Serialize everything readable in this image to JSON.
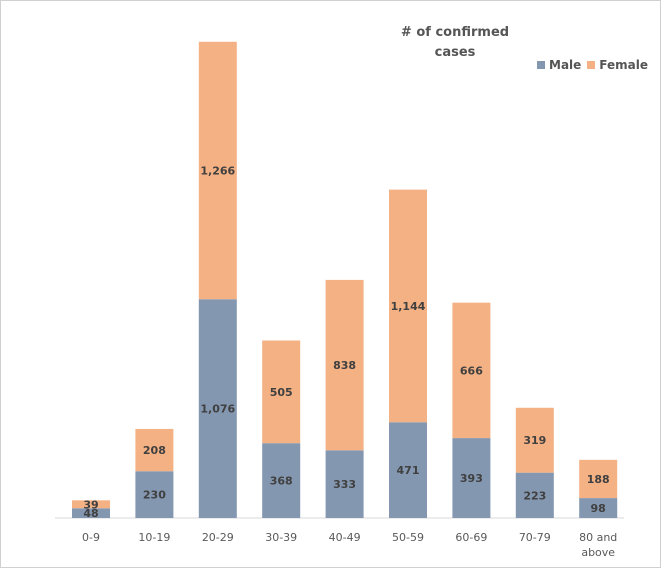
{
  "chart_data": {
    "type": "bar",
    "stacked": true,
    "title": "# of confirmed\ncases",
    "xlabel": "",
    "ylabel": "",
    "legend_position": "top-right",
    "grid": false,
    "categories": [
      "0-9",
      "10-19",
      "20-29",
      "30-39",
      "40-49",
      "50-59",
      "60-69",
      "70-79",
      "80 and above"
    ],
    "series": [
      {
        "name": "Male",
        "color": "#8497b0",
        "values": [
          48,
          230,
          1076,
          368,
          333,
          471,
          393,
          223,
          98
        ],
        "labels": [
          "48",
          "230",
          "1,076",
          "368",
          "333",
          "471",
          "393",
          "223",
          "98"
        ]
      },
      {
        "name": "Female",
        "color": "#f4b183",
        "values": [
          39,
          208,
          1266,
          505,
          838,
          1144,
          666,
          319,
          188
        ],
        "labels": [
          "39",
          "208",
          "1,266",
          "505",
          "838",
          "1,144",
          "666",
          "319",
          "188"
        ]
      }
    ],
    "ylim": [
      0,
      2400
    ]
  }
}
